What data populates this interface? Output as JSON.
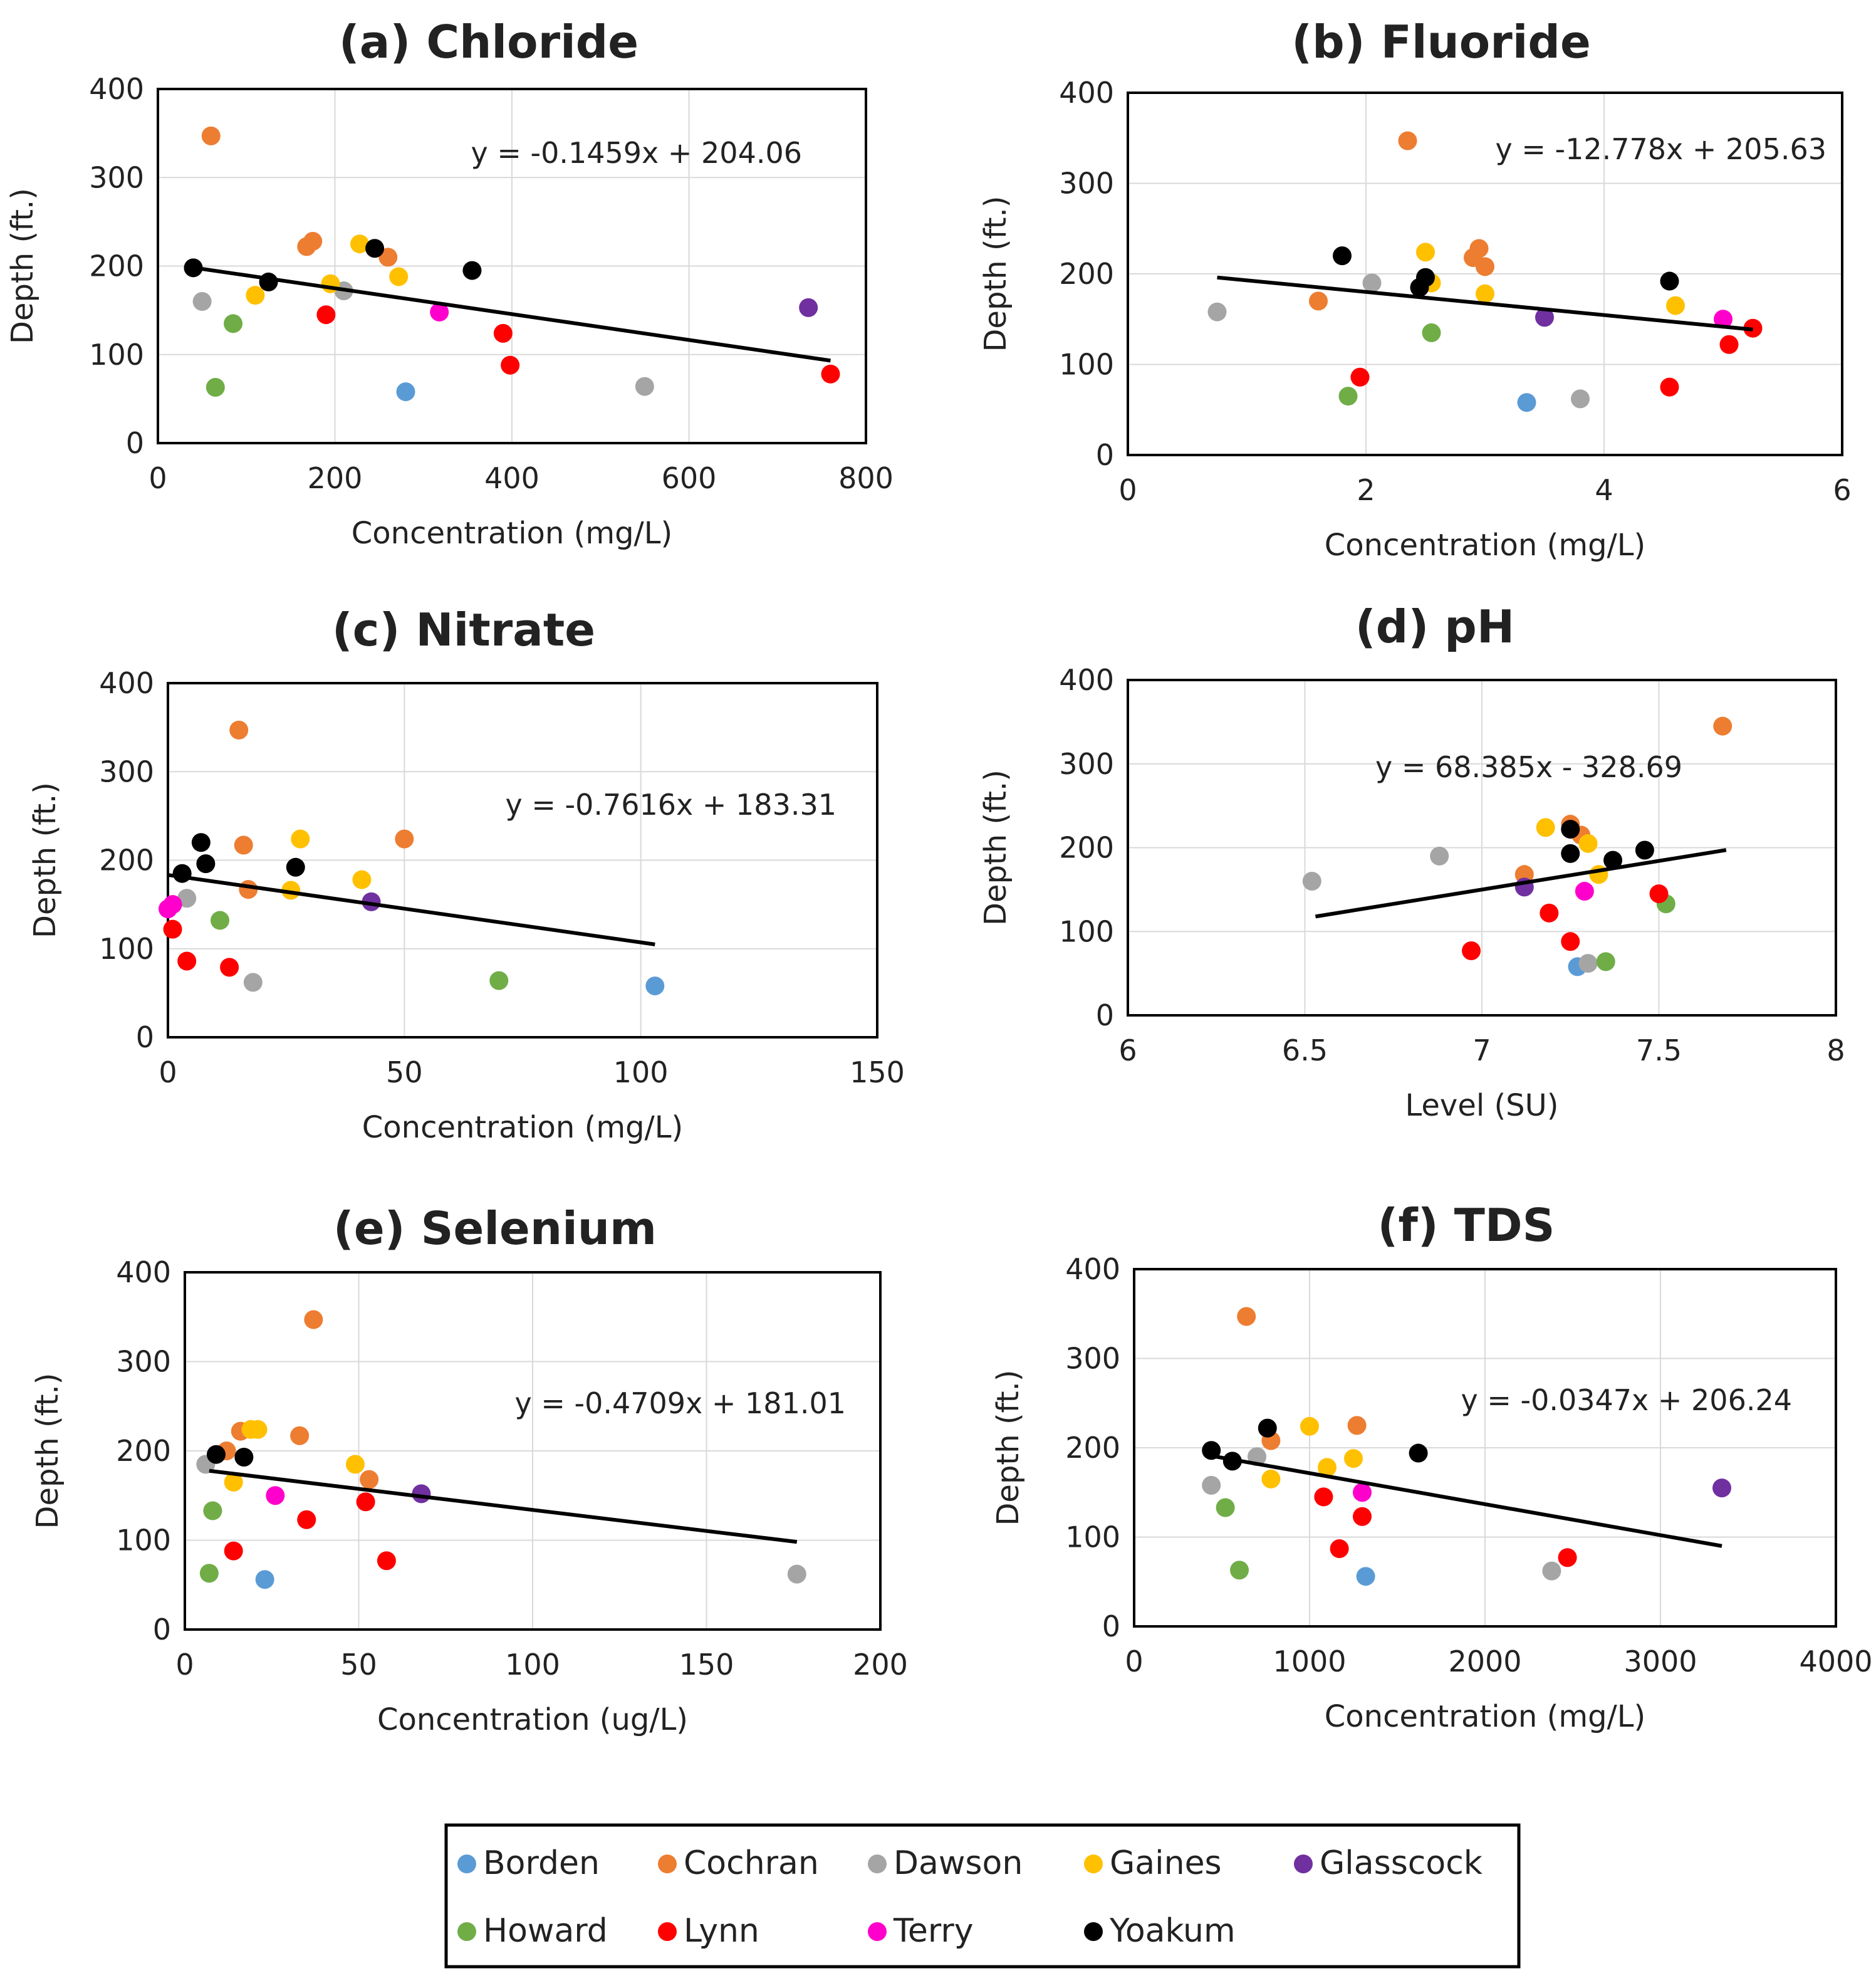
{
  "legend": {
    "items": [
      {
        "name": "Borden",
        "color": "#5b9bd5"
      },
      {
        "name": "Cochran",
        "color": "#ed7d31"
      },
      {
        "name": "Dawson",
        "color": "#a5a5a5"
      },
      {
        "name": "Gaines",
        "color": "#ffc000"
      },
      {
        "name": "Glasscock",
        "color": "#7030a0"
      },
      {
        "name": "Howard",
        "color": "#70ad47"
      },
      {
        "name": "Lynn",
        "color": "#ff0000"
      },
      {
        "name": "Terry",
        "color": "#ff00cc"
      },
      {
        "name": "Yoakum",
        "color": "#000000"
      }
    ]
  },
  "chart_data": [
    {
      "type": "scatter",
      "title": "(a) Chloride",
      "xlabel": "Concentration (mg/L)",
      "ylabel": "Depth (ft.)",
      "xlim": [
        0,
        800
      ],
      "ylim": [
        0,
        400
      ],
      "xticks": [
        0,
        200,
        400,
        600,
        800
      ],
      "yticks": [
        0,
        100,
        200,
        300,
        400
      ],
      "equation": "y = -0.1459x + 204.06",
      "trendline": {
        "x": [
          40,
          760
        ],
        "slope": -0.1459,
        "intercept": 204.06
      },
      "points": [
        {
          "x": 280,
          "y": 58,
          "group": "Borden"
        },
        {
          "x": 60,
          "y": 347,
          "group": "Cochran"
        },
        {
          "x": 168,
          "y": 222,
          "group": "Cochran"
        },
        {
          "x": 175,
          "y": 228,
          "group": "Cochran"
        },
        {
          "x": 260,
          "y": 210,
          "group": "Cochran"
        },
        {
          "x": 50,
          "y": 160,
          "group": "Dawson"
        },
        {
          "x": 210,
          "y": 172,
          "group": "Dawson"
        },
        {
          "x": 550,
          "y": 64,
          "group": "Dawson"
        },
        {
          "x": 110,
          "y": 167,
          "group": "Gaines"
        },
        {
          "x": 195,
          "y": 180,
          "group": "Gaines"
        },
        {
          "x": 228,
          "y": 225,
          "group": "Gaines"
        },
        {
          "x": 272,
          "y": 188,
          "group": "Gaines"
        },
        {
          "x": 735,
          "y": 153,
          "group": "Glasscock"
        },
        {
          "x": 65,
          "y": 63,
          "group": "Howard"
        },
        {
          "x": 85,
          "y": 135,
          "group": "Howard"
        },
        {
          "x": 190,
          "y": 145,
          "group": "Lynn"
        },
        {
          "x": 390,
          "y": 124,
          "group": "Lynn"
        },
        {
          "x": 398,
          "y": 88,
          "group": "Lynn"
        },
        {
          "x": 760,
          "y": 78,
          "group": "Lynn"
        },
        {
          "x": 318,
          "y": 148,
          "group": "Terry"
        },
        {
          "x": 40,
          "y": 198,
          "group": "Yoakum"
        },
        {
          "x": 125,
          "y": 182,
          "group": "Yoakum"
        },
        {
          "x": 245,
          "y": 220,
          "group": "Yoakum"
        },
        {
          "x": 355,
          "y": 195,
          "group": "Yoakum"
        }
      ]
    },
    {
      "type": "scatter",
      "title": "(b) Fluoride",
      "xlabel": "Concentration (mg/L)",
      "ylabel": "Depth (ft.)",
      "xlim": [
        0,
        6
      ],
      "ylim": [
        0,
        400
      ],
      "xticks": [
        0,
        2,
        4,
        6
      ],
      "yticks": [
        0,
        100,
        200,
        300,
        400
      ],
      "equation": "y = -12.778x + 205.63",
      "trendline": {
        "x": [
          0.75,
          5.25
        ],
        "slope": -12.778,
        "intercept": 205.63
      },
      "points": [
        {
          "x": 3.35,
          "y": 58,
          "group": "Borden"
        },
        {
          "x": 1.6,
          "y": 170,
          "group": "Cochran"
        },
        {
          "x": 2.35,
          "y": 347,
          "group": "Cochran"
        },
        {
          "x": 2.9,
          "y": 218,
          "group": "Cochran"
        },
        {
          "x": 2.95,
          "y": 228,
          "group": "Cochran"
        },
        {
          "x": 3.0,
          "y": 208,
          "group": "Cochran"
        },
        {
          "x": 0.75,
          "y": 158,
          "group": "Dawson"
        },
        {
          "x": 2.05,
          "y": 190,
          "group": "Dawson"
        },
        {
          "x": 3.8,
          "y": 62,
          "group": "Dawson"
        },
        {
          "x": 2.5,
          "y": 224,
          "group": "Gaines"
        },
        {
          "x": 2.55,
          "y": 190,
          "group": "Gaines"
        },
        {
          "x": 3.0,
          "y": 178,
          "group": "Gaines"
        },
        {
          "x": 4.6,
          "y": 165,
          "group": "Gaines"
        },
        {
          "x": 3.5,
          "y": 152,
          "group": "Glasscock"
        },
        {
          "x": 1.85,
          "y": 65,
          "group": "Howard"
        },
        {
          "x": 2.55,
          "y": 135,
          "group": "Howard"
        },
        {
          "x": 1.95,
          "y": 86,
          "group": "Lynn"
        },
        {
          "x": 4.55,
          "y": 75,
          "group": "Lynn"
        },
        {
          "x": 5.05,
          "y": 122,
          "group": "Lynn"
        },
        {
          "x": 5.25,
          "y": 140,
          "group": "Lynn"
        },
        {
          "x": 5.0,
          "y": 150,
          "group": "Terry"
        },
        {
          "x": 1.8,
          "y": 220,
          "group": "Yoakum"
        },
        {
          "x": 2.45,
          "y": 185,
          "group": "Yoakum"
        },
        {
          "x": 2.5,
          "y": 196,
          "group": "Yoakum"
        },
        {
          "x": 4.55,
          "y": 192,
          "group": "Yoakum"
        }
      ]
    },
    {
      "type": "scatter",
      "title": "(c) Nitrate",
      "xlabel": "Concentration (mg/L)",
      "ylabel": "Depth (ft.)",
      "xlim": [
        0,
        150
      ],
      "ylim": [
        0,
        400
      ],
      "xticks": [
        0,
        50,
        100,
        150
      ],
      "yticks": [
        0,
        100,
        200,
        300,
        400
      ],
      "equation": "y = -0.7616x + 183.31",
      "trendline": {
        "x": [
          0,
          103
        ],
        "slope": -0.7616,
        "intercept": 183.31
      },
      "points": [
        {
          "x": 103,
          "y": 58,
          "group": "Borden"
        },
        {
          "x": 15,
          "y": 347,
          "group": "Cochran"
        },
        {
          "x": 16,
          "y": 217,
          "group": "Cochran"
        },
        {
          "x": 17,
          "y": 167,
          "group": "Cochran"
        },
        {
          "x": 50,
          "y": 224,
          "group": "Cochran"
        },
        {
          "x": 4,
          "y": 157,
          "group": "Dawson"
        },
        {
          "x": 18,
          "y": 62,
          "group": "Dawson"
        },
        {
          "x": 26,
          "y": 166,
          "group": "Gaines"
        },
        {
          "x": 28,
          "y": 224,
          "group": "Gaines"
        },
        {
          "x": 41,
          "y": 178,
          "group": "Gaines"
        },
        {
          "x": 43,
          "y": 153,
          "group": "Glasscock"
        },
        {
          "x": 11,
          "y": 132,
          "group": "Howard"
        },
        {
          "x": 70,
          "y": 64,
          "group": "Howard"
        },
        {
          "x": 1,
          "y": 122,
          "group": "Lynn"
        },
        {
          "x": 4,
          "y": 86,
          "group": "Lynn"
        },
        {
          "x": 13,
          "y": 79,
          "group": "Lynn"
        },
        {
          "x": 0,
          "y": 145,
          "group": "Terry"
        },
        {
          "x": 1,
          "y": 150,
          "group": "Terry"
        },
        {
          "x": 3,
          "y": 185,
          "group": "Yoakum"
        },
        {
          "x": 7,
          "y": 220,
          "group": "Yoakum"
        },
        {
          "x": 8,
          "y": 196,
          "group": "Yoakum"
        },
        {
          "x": 27,
          "y": 192,
          "group": "Yoakum"
        }
      ]
    },
    {
      "type": "scatter",
      "title": "(d) pH",
      "xlabel": "Level (SU)",
      "ylabel": "Depth (ft.)",
      "xlim": [
        6,
        8
      ],
      "ylim": [
        0,
        400
      ],
      "xticks": [
        6,
        6.5,
        7,
        7.5,
        8
      ],
      "yticks": [
        0,
        100,
        200,
        300,
        400
      ],
      "equation": "y = 68.385x - 328.69",
      "trendline": {
        "x": [
          6.53,
          7.69
        ],
        "slope": 68.385,
        "intercept": -328.69
      },
      "points": [
        {
          "x": 7.27,
          "y": 58,
          "group": "Borden"
        },
        {
          "x": 7.12,
          "y": 168,
          "group": "Cochran"
        },
        {
          "x": 7.25,
          "y": 228,
          "group": "Cochran"
        },
        {
          "x": 7.28,
          "y": 215,
          "group": "Cochran"
        },
        {
          "x": 7.68,
          "y": 345,
          "group": "Cochran"
        },
        {
          "x": 6.52,
          "y": 160,
          "group": "Dawson"
        },
        {
          "x": 6.88,
          "y": 190,
          "group": "Dawson"
        },
        {
          "x": 7.3,
          "y": 62,
          "group": "Dawson"
        },
        {
          "x": 7.18,
          "y": 224,
          "group": "Gaines"
        },
        {
          "x": 7.3,
          "y": 205,
          "group": "Gaines"
        },
        {
          "x": 7.33,
          "y": 168,
          "group": "Gaines"
        },
        {
          "x": 7.12,
          "y": 153,
          "group": "Glasscock"
        },
        {
          "x": 7.35,
          "y": 64,
          "group": "Howard"
        },
        {
          "x": 7.52,
          "y": 133,
          "group": "Howard"
        },
        {
          "x": 6.97,
          "y": 77,
          "group": "Lynn"
        },
        {
          "x": 7.19,
          "y": 122,
          "group": "Lynn"
        },
        {
          "x": 7.25,
          "y": 88,
          "group": "Lynn"
        },
        {
          "x": 7.5,
          "y": 145,
          "group": "Lynn"
        },
        {
          "x": 7.29,
          "y": 148,
          "group": "Terry"
        },
        {
          "x": 7.25,
          "y": 222,
          "group": "Yoakum"
        },
        {
          "x": 7.25,
          "y": 193,
          "group": "Yoakum"
        },
        {
          "x": 7.37,
          "y": 185,
          "group": "Yoakum"
        },
        {
          "x": 7.46,
          "y": 197,
          "group": "Yoakum"
        }
      ]
    },
    {
      "type": "scatter",
      "title": "(e) Selenium",
      "xlabel": "Concentration (ug/L)",
      "ylabel": "Depth (ft.)",
      "xlim": [
        0,
        200
      ],
      "ylim": [
        0,
        400
      ],
      "xticks": [
        0,
        50,
        100,
        150,
        200
      ],
      "yticks": [
        0,
        100,
        200,
        300,
        400
      ],
      "equation": "y = -0.4709x + 181.01",
      "trendline": {
        "x": [
          7,
          176
        ],
        "slope": -0.4709,
        "intercept": 181.01
      },
      "points": [
        {
          "x": 23,
          "y": 56,
          "group": "Borden"
        },
        {
          "x": 12,
          "y": 200,
          "group": "Cochran"
        },
        {
          "x": 16,
          "y": 222,
          "group": "Cochran"
        },
        {
          "x": 33,
          "y": 217,
          "group": "Cochran"
        },
        {
          "x": 37,
          "y": 347,
          "group": "Cochran"
        },
        {
          "x": 53,
          "y": 168,
          "group": "Cochran"
        },
        {
          "x": 6,
          "y": 185,
          "group": "Dawson"
        },
        {
          "x": 176,
          "y": 62,
          "group": "Dawson"
        },
        {
          "x": 14,
          "y": 165,
          "group": "Gaines"
        },
        {
          "x": 19,
          "y": 224,
          "group": "Gaines"
        },
        {
          "x": 21,
          "y": 224,
          "group": "Gaines"
        },
        {
          "x": 49,
          "y": 185,
          "group": "Gaines"
        },
        {
          "x": 68,
          "y": 152,
          "group": "Glasscock"
        },
        {
          "x": 7,
          "y": 63,
          "group": "Howard"
        },
        {
          "x": 8,
          "y": 133,
          "group": "Howard"
        },
        {
          "x": 14,
          "y": 88,
          "group": "Lynn"
        },
        {
          "x": 35,
          "y": 123,
          "group": "Lynn"
        },
        {
          "x": 52,
          "y": 143,
          "group": "Lynn"
        },
        {
          "x": 58,
          "y": 77,
          "group": "Lynn"
        },
        {
          "x": 26,
          "y": 150,
          "group": "Terry"
        },
        {
          "x": 9,
          "y": 196,
          "group": "Yoakum"
        },
        {
          "x": 17,
          "y": 193,
          "group": "Yoakum"
        }
      ]
    },
    {
      "type": "scatter",
      "title": "(f) TDS",
      "xlabel": "Concentration (mg/L)",
      "ylabel": "Depth (ft.)",
      "xlim": [
        0,
        4000
      ],
      "ylim": [
        0,
        400
      ],
      "xticks": [
        0,
        1000,
        2000,
        3000,
        4000
      ],
      "yticks": [
        0,
        100,
        200,
        300,
        400
      ],
      "equation": "y = -0.0347x + 206.24",
      "trendline": {
        "x": [
          430,
          3350
        ],
        "slope": -0.0347,
        "intercept": 206.24
      },
      "points": [
        {
          "x": 1320,
          "y": 56,
          "group": "Borden"
        },
        {
          "x": 640,
          "y": 347,
          "group": "Cochran"
        },
        {
          "x": 780,
          "y": 208,
          "group": "Cochran"
        },
        {
          "x": 1270,
          "y": 225,
          "group": "Cochran"
        },
        {
          "x": 440,
          "y": 158,
          "group": "Dawson"
        },
        {
          "x": 700,
          "y": 190,
          "group": "Dawson"
        },
        {
          "x": 2380,
          "y": 62,
          "group": "Dawson"
        },
        {
          "x": 780,
          "y": 165,
          "group": "Gaines"
        },
        {
          "x": 1000,
          "y": 224,
          "group": "Gaines"
        },
        {
          "x": 1100,
          "y": 178,
          "group": "Gaines"
        },
        {
          "x": 1250,
          "y": 188,
          "group": "Gaines"
        },
        {
          "x": 3350,
          "y": 155,
          "group": "Glasscock"
        },
        {
          "x": 520,
          "y": 133,
          "group": "Howard"
        },
        {
          "x": 600,
          "y": 63,
          "group": "Howard"
        },
        {
          "x": 1080,
          "y": 145,
          "group": "Lynn"
        },
        {
          "x": 1170,
          "y": 87,
          "group": "Lynn"
        },
        {
          "x": 1300,
          "y": 123,
          "group": "Lynn"
        },
        {
          "x": 2470,
          "y": 77,
          "group": "Lynn"
        },
        {
          "x": 1300,
          "y": 150,
          "group": "Terry"
        },
        {
          "x": 440,
          "y": 197,
          "group": "Yoakum"
        },
        {
          "x": 560,
          "y": 185,
          "group": "Yoakum"
        },
        {
          "x": 760,
          "y": 222,
          "group": "Yoakum"
        },
        {
          "x": 1620,
          "y": 194,
          "group": "Yoakum"
        }
      ]
    }
  ]
}
